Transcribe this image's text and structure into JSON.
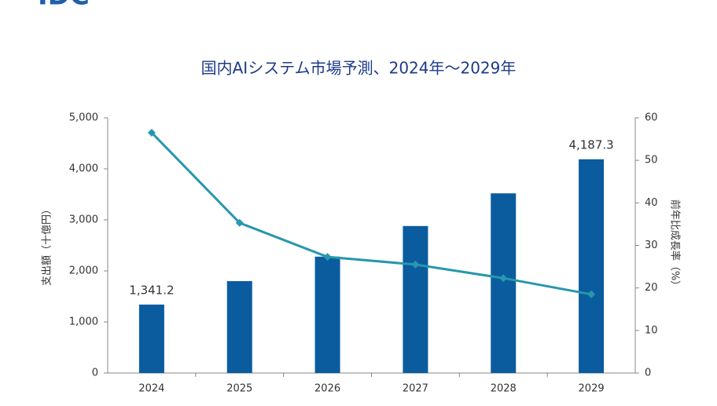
{
  "logo": "IDC",
  "chart_data": {
    "type": "bar-line",
    "title": "国内AIシステム市場予測、2024年～2029年",
    "ylabel": "支出額（十億円）",
    "y2label": "前年比成長率（%）",
    "categories": [
      "2024",
      "2025",
      "2026",
      "2027",
      "2028",
      "2029"
    ],
    "series": [
      {
        "type": "bar",
        "color": "#0b5c9e",
        "values": [
          1341.2,
          1800,
          2280,
          2880,
          3520,
          4187.3
        ],
        "value_labels": [
          "1,341.2",
          null,
          null,
          null,
          null,
          "4,187.3"
        ]
      },
      {
        "type": "line",
        "axis": "y2",
        "color": "#2797ad",
        "values": [
          56.5,
          35.3,
          27.3,
          25.5,
          22.3,
          18.5
        ]
      }
    ],
    "ylim": [
      0,
      5000
    ],
    "yticks": [
      0,
      {
        "value": 1000,
        "label": "1,000"
      },
      {
        "value": 2000,
        "label": "2,000"
      },
      {
        "value": 3000,
        "label": "3,000"
      },
      {
        "value": 4000,
        "label": "4,000"
      },
      {
        "value": 5000,
        "label": "5,000"
      }
    ],
    "y2lim": [
      0,
      60
    ],
    "y2ticks": [
      0,
      10,
      20,
      30,
      40,
      50,
      60
    ],
    "grid": false
  }
}
